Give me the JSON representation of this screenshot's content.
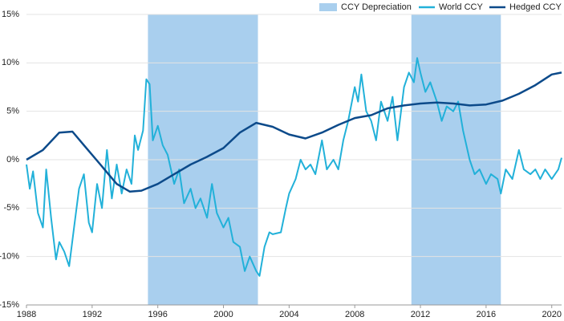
{
  "chart_data": {
    "type": "line",
    "regions": {
      "name": "CCY Depreciation",
      "color": "#a9cfee",
      "ranges": [
        [
          1995.4,
          2002.1
        ],
        [
          2011.45,
          2016.9
        ]
      ]
    },
    "series": [
      {
        "name": "World CCY",
        "color": "#22b1d9",
        "x": [
          1988,
          1988.2,
          1988.4,
          1988.7,
          1989,
          1989.2,
          1989.5,
          1989.8,
          1990,
          1990.3,
          1990.6,
          1990.9,
          1991.2,
          1991.5,
          1991.8,
          1992,
          1992.3,
          1992.6,
          1992.9,
          1993.2,
          1993.5,
          1993.8,
          1994.1,
          1994.4,
          1994.6,
          1994.8,
          1995.1,
          1995.3,
          1995.5,
          1995.7,
          1996,
          1996.3,
          1996.6,
          1997,
          1997.3,
          1997.6,
          1998,
          1998.3,
          1998.6,
          1999,
          1999.3,
          1999.6,
          2000,
          2000.3,
          2000.6,
          2001,
          2001.3,
          2001.6,
          2002,
          2002.2,
          2002.5,
          2002.8,
          2003,
          2003.5,
          2003.8,
          2004,
          2004.4,
          2004.7,
          2005,
          2005.3,
          2005.6,
          2006,
          2006.3,
          2006.7,
          2007,
          2007.3,
          2007.6,
          2008,
          2008.2,
          2008.4,
          2008.7,
          2009,
          2009.3,
          2009.6,
          2010,
          2010.3,
          2010.6,
          2011,
          2011.3,
          2011.6,
          2011.8,
          2012,
          2012.3,
          2012.6,
          2013,
          2013.3,
          2013.6,
          2014,
          2014.3,
          2014.6,
          2015,
          2015.3,
          2015.6,
          2016,
          2016.3,
          2016.7,
          2016.9,
          2017.2,
          2017.6,
          2018,
          2018.3,
          2018.7,
          2019,
          2019.3,
          2019.6,
          2020,
          2020.4,
          2020.6
        ],
        "values": [
          -0.5,
          -3,
          -1.2,
          -5.5,
          -7,
          -1,
          -6,
          -10.3,
          -8.5,
          -9.5,
          -11,
          -7,
          -3,
          -1.5,
          -6.5,
          -7.5,
          -2.5,
          -5,
          1,
          -4,
          -0.5,
          -3.5,
          -1,
          -2.5,
          2.5,
          1,
          3,
          8.3,
          7.8,
          2,
          3.5,
          1.5,
          0.5,
          -2.5,
          -1,
          -4.5,
          -3,
          -5,
          -4,
          -6,
          -2.5,
          -5.5,
          -7,
          -6,
          -8.5,
          -9,
          -11.5,
          -10,
          -11.5,
          -12,
          -9,
          -7.5,
          -7.7,
          -7.5,
          -5,
          -3.5,
          -2,
          0,
          -1,
          -0.5,
          -1.5,
          2,
          -1,
          0,
          -1,
          2,
          4,
          7.5,
          6,
          8.8,
          5,
          4,
          2,
          6,
          4,
          6.5,
          2,
          7.5,
          9,
          8,
          10.5,
          9,
          7,
          8,
          6,
          4,
          5.5,
          5,
          6,
          3,
          0,
          -1.5,
          -1,
          -2.5,
          -1.5,
          -2,
          -3.5,
          -1,
          -2,
          1,
          -1,
          -1.5,
          -1,
          -2,
          -1,
          -2,
          -1,
          0.2
        ]
      },
      {
        "name": "Hedged CCY",
        "color": "#0c4a8a",
        "x": [
          1988,
          1989,
          1990,
          1990.8,
          1991.5,
          1992.5,
          1993.5,
          1994.3,
          1995,
          1996,
          1997,
          1998,
          1999,
          2000,
          2001,
          2002,
          2003,
          2004,
          2005,
          2006,
          2007,
          2008,
          2009,
          2010,
          2011,
          2012,
          2013,
          2014,
          2015,
          2016,
          2017,
          2018,
          2019,
          2020,
          2020.6
        ],
        "values": [
          0,
          1,
          2.8,
          2.9,
          1.5,
          -0.5,
          -2.5,
          -3.3,
          -3.2,
          -2.5,
          -1.5,
          -0.5,
          0.3,
          1.2,
          2.8,
          3.8,
          3.4,
          2.6,
          2.2,
          2.8,
          3.6,
          4.3,
          4.6,
          5.3,
          5.6,
          5.8,
          5.9,
          5.8,
          5.6,
          5.7,
          6.1,
          6.8,
          7.7,
          8.8,
          9
        ]
      }
    ],
    "xlim": [
      1988,
      2020.6
    ],
    "xticks": [
      1988,
      1992,
      1996,
      2000,
      2004,
      2008,
      2012,
      2016,
      2020
    ],
    "ylim": [
      -15,
      15
    ],
    "yticks": [
      {
        "value": -15,
        "label": "-15%"
      },
      {
        "value": -10,
        "label": "-10%"
      },
      {
        "value": -5,
        "label": "-5%"
      },
      {
        "value": 0,
        "label": "0%"
      },
      {
        "value": 5,
        "label": "5%"
      },
      {
        "value": 10,
        "label": "10%"
      },
      {
        "value": 15,
        "label": "15%"
      }
    ],
    "grid": true,
    "legend": "top-right"
  }
}
